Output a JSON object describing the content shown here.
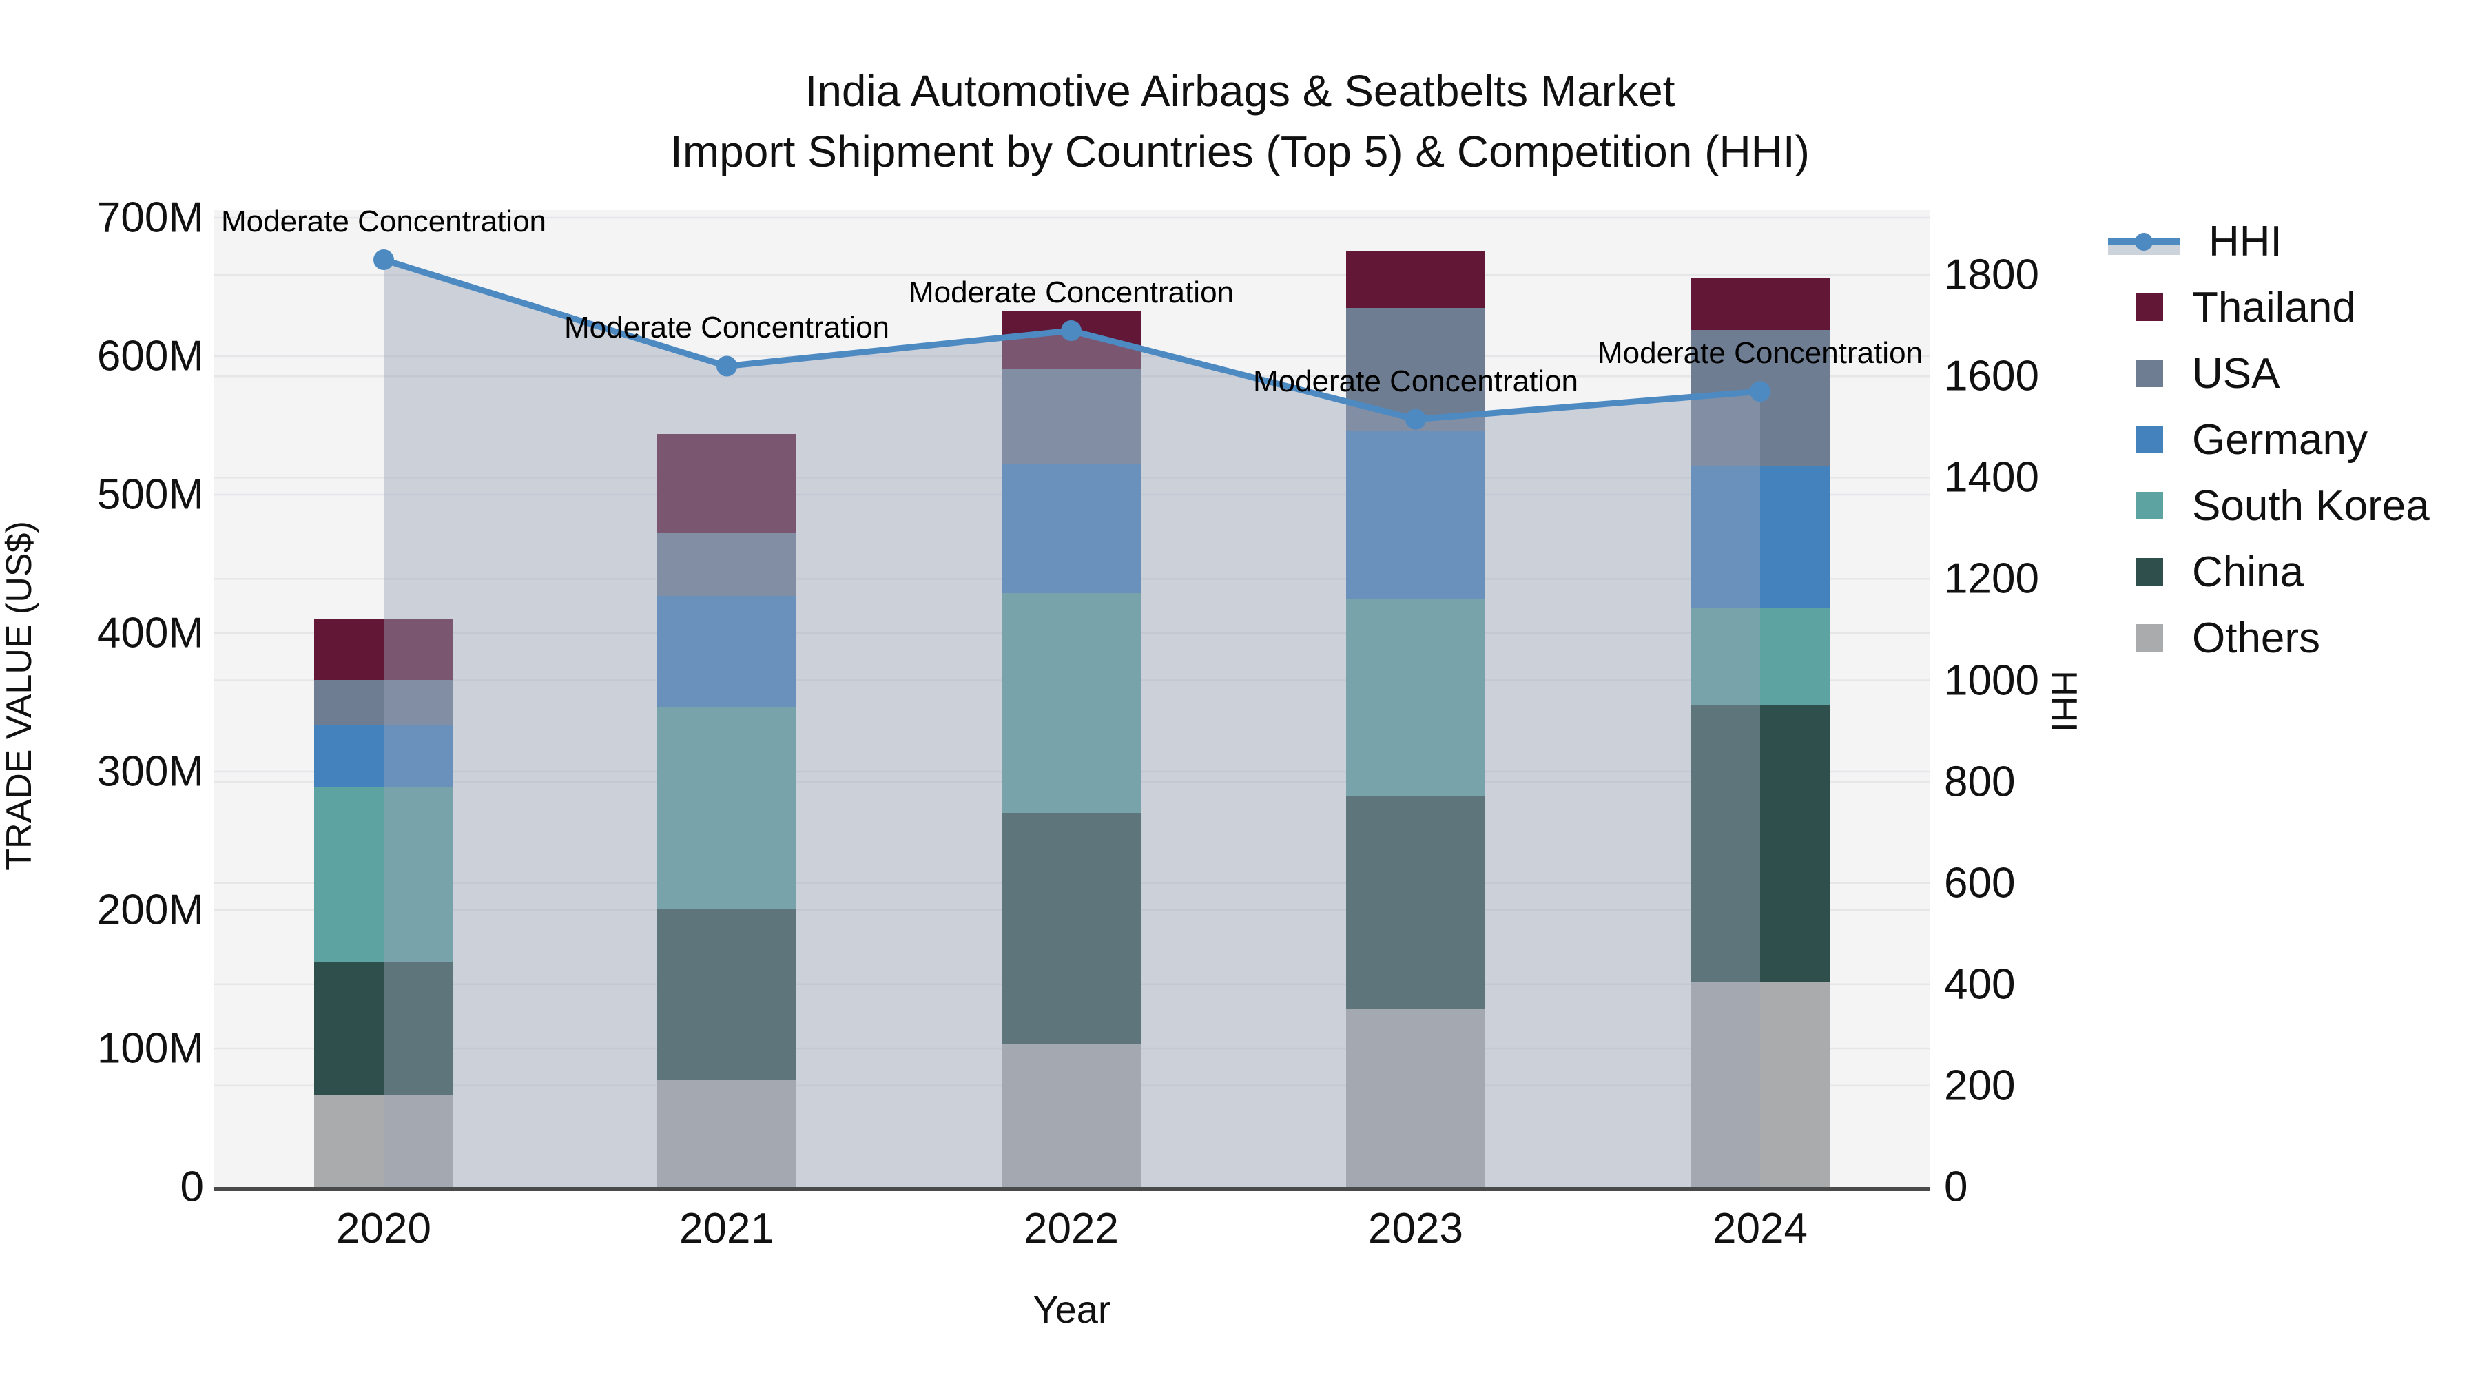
{
  "title": {
    "line1": "India Automotive Airbags & Seatbelts Market",
    "line2": "Import Shipment by Countries (Top 5) & Competition (HHI)"
  },
  "axes": {
    "x_label": "Year",
    "y_left_label": "TRADE VALUE (US$)",
    "y_right_label": "HHI",
    "y_left_tick_labels": [
      "0",
      "100M",
      "200M",
      "300M",
      "400M",
      "500M",
      "600M",
      "700M"
    ],
    "y_left_tick_values_millions": [
      0,
      100,
      200,
      300,
      400,
      500,
      600,
      700
    ],
    "y_right_tick_labels": [
      "0",
      "200",
      "400",
      "600",
      "800",
      "1000",
      "1200",
      "1400",
      "1600",
      "1800"
    ],
    "y_right_tick_values": [
      0,
      200,
      400,
      600,
      800,
      1000,
      1200,
      1400,
      1600,
      1800
    ]
  },
  "legend": {
    "items": [
      {
        "label": "HHI",
        "type": "line",
        "color": "#4e8ac2",
        "band_color": "#ccd3db"
      },
      {
        "label": "Thailand",
        "type": "swatch",
        "color": "#621737"
      },
      {
        "label": "USA",
        "type": "swatch",
        "color": "#6e7d92"
      },
      {
        "label": "Germany",
        "type": "swatch",
        "color": "#4382bd"
      },
      {
        "label": "South Korea",
        "type": "swatch",
        "color": "#5ca3a1"
      },
      {
        "label": "China",
        "type": "swatch",
        "color": "#2e4f4c"
      },
      {
        "label": "Others",
        "type": "swatch",
        "color": "#a9abac"
      }
    ]
  },
  "chart_data": {
    "type": "bar",
    "subtype": "stacked-bars-with-line-overlay",
    "title": "India Automotive Airbags & Seatbelts Market — Import Shipment by Countries (Top 5) & Competition (HHI)",
    "categories": [
      "2020",
      "2021",
      "2022",
      "2023",
      "2024"
    ],
    "units": "millions USD",
    "xlabel": "Year",
    "ylabel_left": "TRADE VALUE (US$)",
    "ylabel_right": "HHI",
    "ylim_left_millions": [
      0,
      707
    ],
    "ylim_right_hhi": [
      0,
      1930
    ],
    "grid": true,
    "legend_position": "right",
    "series": [
      {
        "name": "Others",
        "stack_order": 1,
        "color": "#a9abac",
        "values": [
          66,
          77,
          103,
          129,
          148
        ]
      },
      {
        "name": "China",
        "stack_order": 2,
        "color": "#2e4f4c",
        "values": [
          96,
          124,
          167,
          153,
          200
        ]
      },
      {
        "name": "South Korea",
        "stack_order": 3,
        "color": "#5ca3a1",
        "values": [
          127,
          146,
          159,
          143,
          70
        ]
      },
      {
        "name": "Germany",
        "stack_order": 4,
        "color": "#4382bd",
        "values": [
          45,
          80,
          93,
          121,
          103
        ]
      },
      {
        "name": "USA",
        "stack_order": 5,
        "color": "#6e7d92",
        "values": [
          32,
          45,
          69,
          89,
          98
        ]
      },
      {
        "name": "Thailand",
        "stack_order": 6,
        "color": "#621737",
        "values": [
          44,
          72,
          42,
          41,
          37
        ]
      }
    ],
    "bar_totals_millions": [
      410,
      544,
      633,
      676,
      656
    ],
    "line_series": {
      "name": "HHI",
      "axis": "right",
      "color": "#4e8ac2",
      "fill_under_color": "rgba(155,165,185,0.45)",
      "values": [
        1830,
        1620,
        1690,
        1515,
        1570
      ],
      "point_annotations": [
        "Moderate Concentration",
        "Moderate Concentration",
        "Moderate Concentration",
        "Moderate Concentration",
        "Moderate Concentration"
      ]
    }
  }
}
